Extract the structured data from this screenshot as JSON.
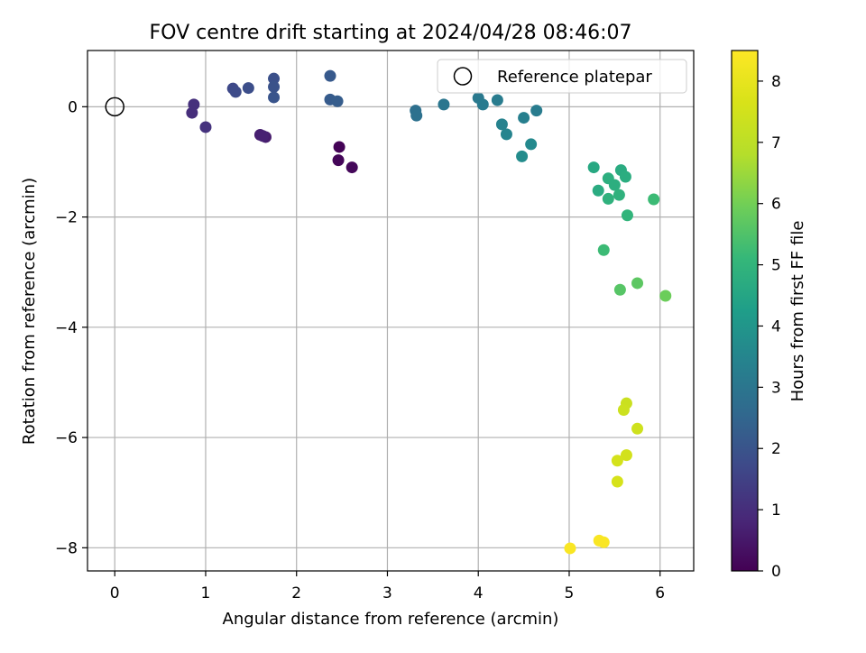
{
  "chart_data": {
    "type": "scatter",
    "title": "FOV centre drift starting at 2024/04/28 08:46:07",
    "xlabel": "Angular distance from reference (arcmin)",
    "ylabel": "Rotation from reference (arcmin)",
    "xlim": [
      -0.3,
      6.37
    ],
    "ylim": [
      -8.42,
      1.02
    ],
    "xticks": [
      0,
      1,
      2,
      3,
      4,
      5,
      6
    ],
    "yticks": [
      0,
      -2,
      -4,
      -6,
      -8
    ],
    "x_tick_labels": [
      "0",
      "1",
      "2",
      "3",
      "4",
      "5",
      "6"
    ],
    "y_tick_labels": [
      "0",
      "−2",
      "−4",
      "−6",
      "−8"
    ],
    "grid": true,
    "legend": {
      "position": "top-right",
      "entries": [
        "Reference platepar"
      ]
    },
    "colorbar": {
      "label": "Hours from first FF file",
      "range": [
        0,
        8.5
      ],
      "ticks": [
        0,
        1,
        2,
        3,
        4,
        5,
        6,
        7,
        8
      ],
      "tick_labels": [
        "0",
        "1",
        "2",
        "3",
        "4",
        "5",
        "6",
        "7",
        "8"
      ],
      "colormap": "viridis"
    },
    "reference": {
      "x": 0,
      "y": 0
    },
    "points": [
      {
        "x": 2.47,
        "y": -0.73,
        "hours": 0.05
      },
      {
        "x": 2.46,
        "y": -0.97,
        "hours": 0.1
      },
      {
        "x": 2.61,
        "y": -1.1,
        "hours": 0.15
      },
      {
        "x": 1.66,
        "y": -0.55,
        "hours": 0.6
      },
      {
        "x": 1.6,
        "y": -0.51,
        "hours": 0.65
      },
      {
        "x": 1.63,
        "y": -0.53,
        "hours": 0.7
      },
      {
        "x": 0.85,
        "y": -0.11,
        "hours": 1.0
      },
      {
        "x": 0.87,
        "y": 0.04,
        "hours": 1.05
      },
      {
        "x": 1.0,
        "y": -0.37,
        "hours": 1.1
      },
      {
        "x": 1.3,
        "y": 0.33,
        "hours": 1.7
      },
      {
        "x": 1.33,
        "y": 0.27,
        "hours": 1.75
      },
      {
        "x": 1.47,
        "y": 0.34,
        "hours": 1.85
      },
      {
        "x": 1.75,
        "y": 0.51,
        "hours": 1.9
      },
      {
        "x": 1.75,
        "y": 0.36,
        "hours": 1.95
      },
      {
        "x": 1.75,
        "y": 0.17,
        "hours": 2.0
      },
      {
        "x": 2.37,
        "y": 0.56,
        "hours": 2.15
      },
      {
        "x": 2.37,
        "y": 0.13,
        "hours": 2.2
      },
      {
        "x": 2.45,
        "y": 0.1,
        "hours": 2.25
      },
      {
        "x": 3.31,
        "y": -0.07,
        "hours": 2.8
      },
      {
        "x": 3.32,
        "y": -0.16,
        "hours": 2.85
      },
      {
        "x": 3.62,
        "y": 0.04,
        "hours": 3.0
      },
      {
        "x": 4.0,
        "y": 0.16,
        "hours": 3.1
      },
      {
        "x": 4.05,
        "y": 0.04,
        "hours": 3.15
      },
      {
        "x": 4.21,
        "y": 0.12,
        "hours": 3.2
      },
      {
        "x": 4.26,
        "y": -0.32,
        "hours": 3.4
      },
      {
        "x": 4.31,
        "y": -0.5,
        "hours": 3.45
      },
      {
        "x": 4.5,
        "y": -0.2,
        "hours": 3.3
      },
      {
        "x": 4.64,
        "y": -0.07,
        "hours": 3.2
      },
      {
        "x": 4.58,
        "y": -0.68,
        "hours": 3.6
      },
      {
        "x": 4.48,
        "y": -0.9,
        "hours": 3.7
      },
      {
        "x": 5.27,
        "y": -1.1,
        "hours": 4.6
      },
      {
        "x": 5.32,
        "y": -1.52,
        "hours": 4.7
      },
      {
        "x": 5.43,
        "y": -1.3,
        "hours": 4.8
      },
      {
        "x": 5.5,
        "y": -1.42,
        "hours": 4.8
      },
      {
        "x": 5.57,
        "y": -1.15,
        "hours": 4.7
      },
      {
        "x": 5.62,
        "y": -1.27,
        "hours": 4.75
      },
      {
        "x": 5.55,
        "y": -1.6,
        "hours": 4.9
      },
      {
        "x": 5.43,
        "y": -1.67,
        "hours": 4.9
      },
      {
        "x": 5.64,
        "y": -1.97,
        "hours": 5.0
      },
      {
        "x": 5.93,
        "y": -1.68,
        "hours": 5.2
      },
      {
        "x": 5.38,
        "y": -2.6,
        "hours": 5.2
      },
      {
        "x": 5.56,
        "y": -3.32,
        "hours": 5.6
      },
      {
        "x": 5.75,
        "y": -3.2,
        "hours": 5.7
      },
      {
        "x": 6.06,
        "y": -3.43,
        "hours": 5.9
      },
      {
        "x": 5.63,
        "y": -5.38,
        "hours": 7.3
      },
      {
        "x": 5.6,
        "y": -5.5,
        "hours": 7.35
      },
      {
        "x": 5.75,
        "y": -5.84,
        "hours": 7.4
      },
      {
        "x": 5.63,
        "y": -6.32,
        "hours": 7.5
      },
      {
        "x": 5.53,
        "y": -6.42,
        "hours": 7.55
      },
      {
        "x": 5.53,
        "y": -6.8,
        "hours": 7.6
      },
      {
        "x": 5.01,
        "y": -8.01,
        "hours": 8.4
      },
      {
        "x": 5.33,
        "y": -7.87,
        "hours": 8.4
      },
      {
        "x": 5.38,
        "y": -7.9,
        "hours": 8.4
      }
    ]
  }
}
